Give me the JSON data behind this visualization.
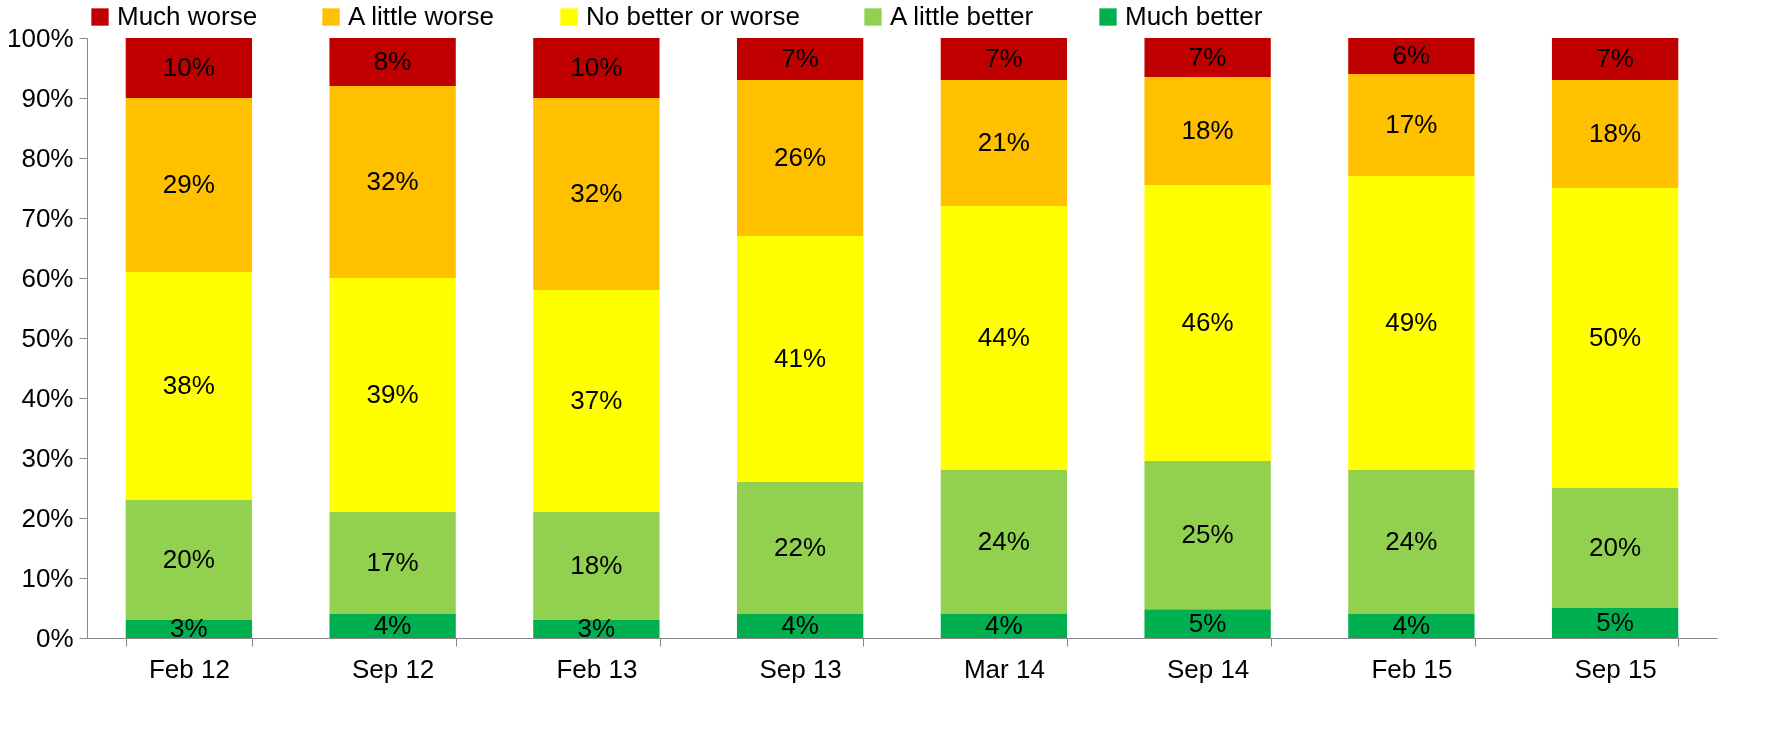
{
  "chart_data": {
    "type": "bar",
    "stacked": true,
    "legend": "top",
    "grid": false,
    "categories": [
      "Feb 12",
      "Sep 12",
      "Feb 13",
      "Sep 13",
      "Mar 14",
      "Sep 14",
      "Feb 15",
      "Sep 15"
    ],
    "ylim": [
      0,
      100
    ],
    "yticks": [
      {
        "value": 0,
        "label": "0%"
      },
      {
        "value": 10,
        "label": "10%"
      },
      {
        "value": 20,
        "label": "20%"
      },
      {
        "value": 30,
        "label": "30%"
      },
      {
        "value": 40,
        "label": "40%"
      },
      {
        "value": 50,
        "label": "50%"
      },
      {
        "value": 60,
        "label": "60%"
      },
      {
        "value": 70,
        "label": "70%"
      },
      {
        "value": 80,
        "label": "80%"
      },
      {
        "value": 90,
        "label": "90%"
      },
      {
        "value": 100,
        "label": "100%"
      }
    ],
    "series": [
      {
        "name": "Much better",
        "color": "#00b050",
        "values": [
          3,
          4,
          3,
          4,
          4,
          4.8,
          4,
          5
        ],
        "value_labels": [
          "3%",
          "4%",
          "3%",
          "4%",
          "4%",
          "5%",
          "4%",
          "5%"
        ]
      },
      {
        "name": "A little better",
        "color": "#92d050",
        "values": [
          20,
          17,
          18,
          22,
          24,
          24.7,
          24,
          20
        ],
        "value_labels": [
          "20%",
          "17%",
          "18%",
          "22%",
          "24%",
          "25%",
          "24%",
          "20%"
        ]
      },
      {
        "name": "No better or worse",
        "color": "#ffff00",
        "values": [
          38,
          39,
          37,
          41,
          44,
          46,
          49,
          50
        ],
        "value_labels": [
          "38%",
          "39%",
          "37%",
          "41%",
          "44%",
          "46%",
          "49%",
          "50%"
        ]
      },
      {
        "name": "A little worse",
        "color": "#ffc000",
        "values": [
          29,
          32,
          32,
          26,
          21,
          18,
          17,
          18
        ],
        "value_labels": [
          "29%",
          "32%",
          "32%",
          "26%",
          "21%",
          "18%",
          "17%",
          "18%"
        ]
      },
      {
        "name": "Much worse",
        "color": "#c00000",
        "values": [
          10,
          8,
          10,
          7,
          7,
          6.5,
          6,
          7
        ],
        "value_labels": [
          "10%",
          "8%",
          "10%",
          "7%",
          "7%",
          "7%",
          "6%",
          "7%"
        ]
      }
    ]
  }
}
